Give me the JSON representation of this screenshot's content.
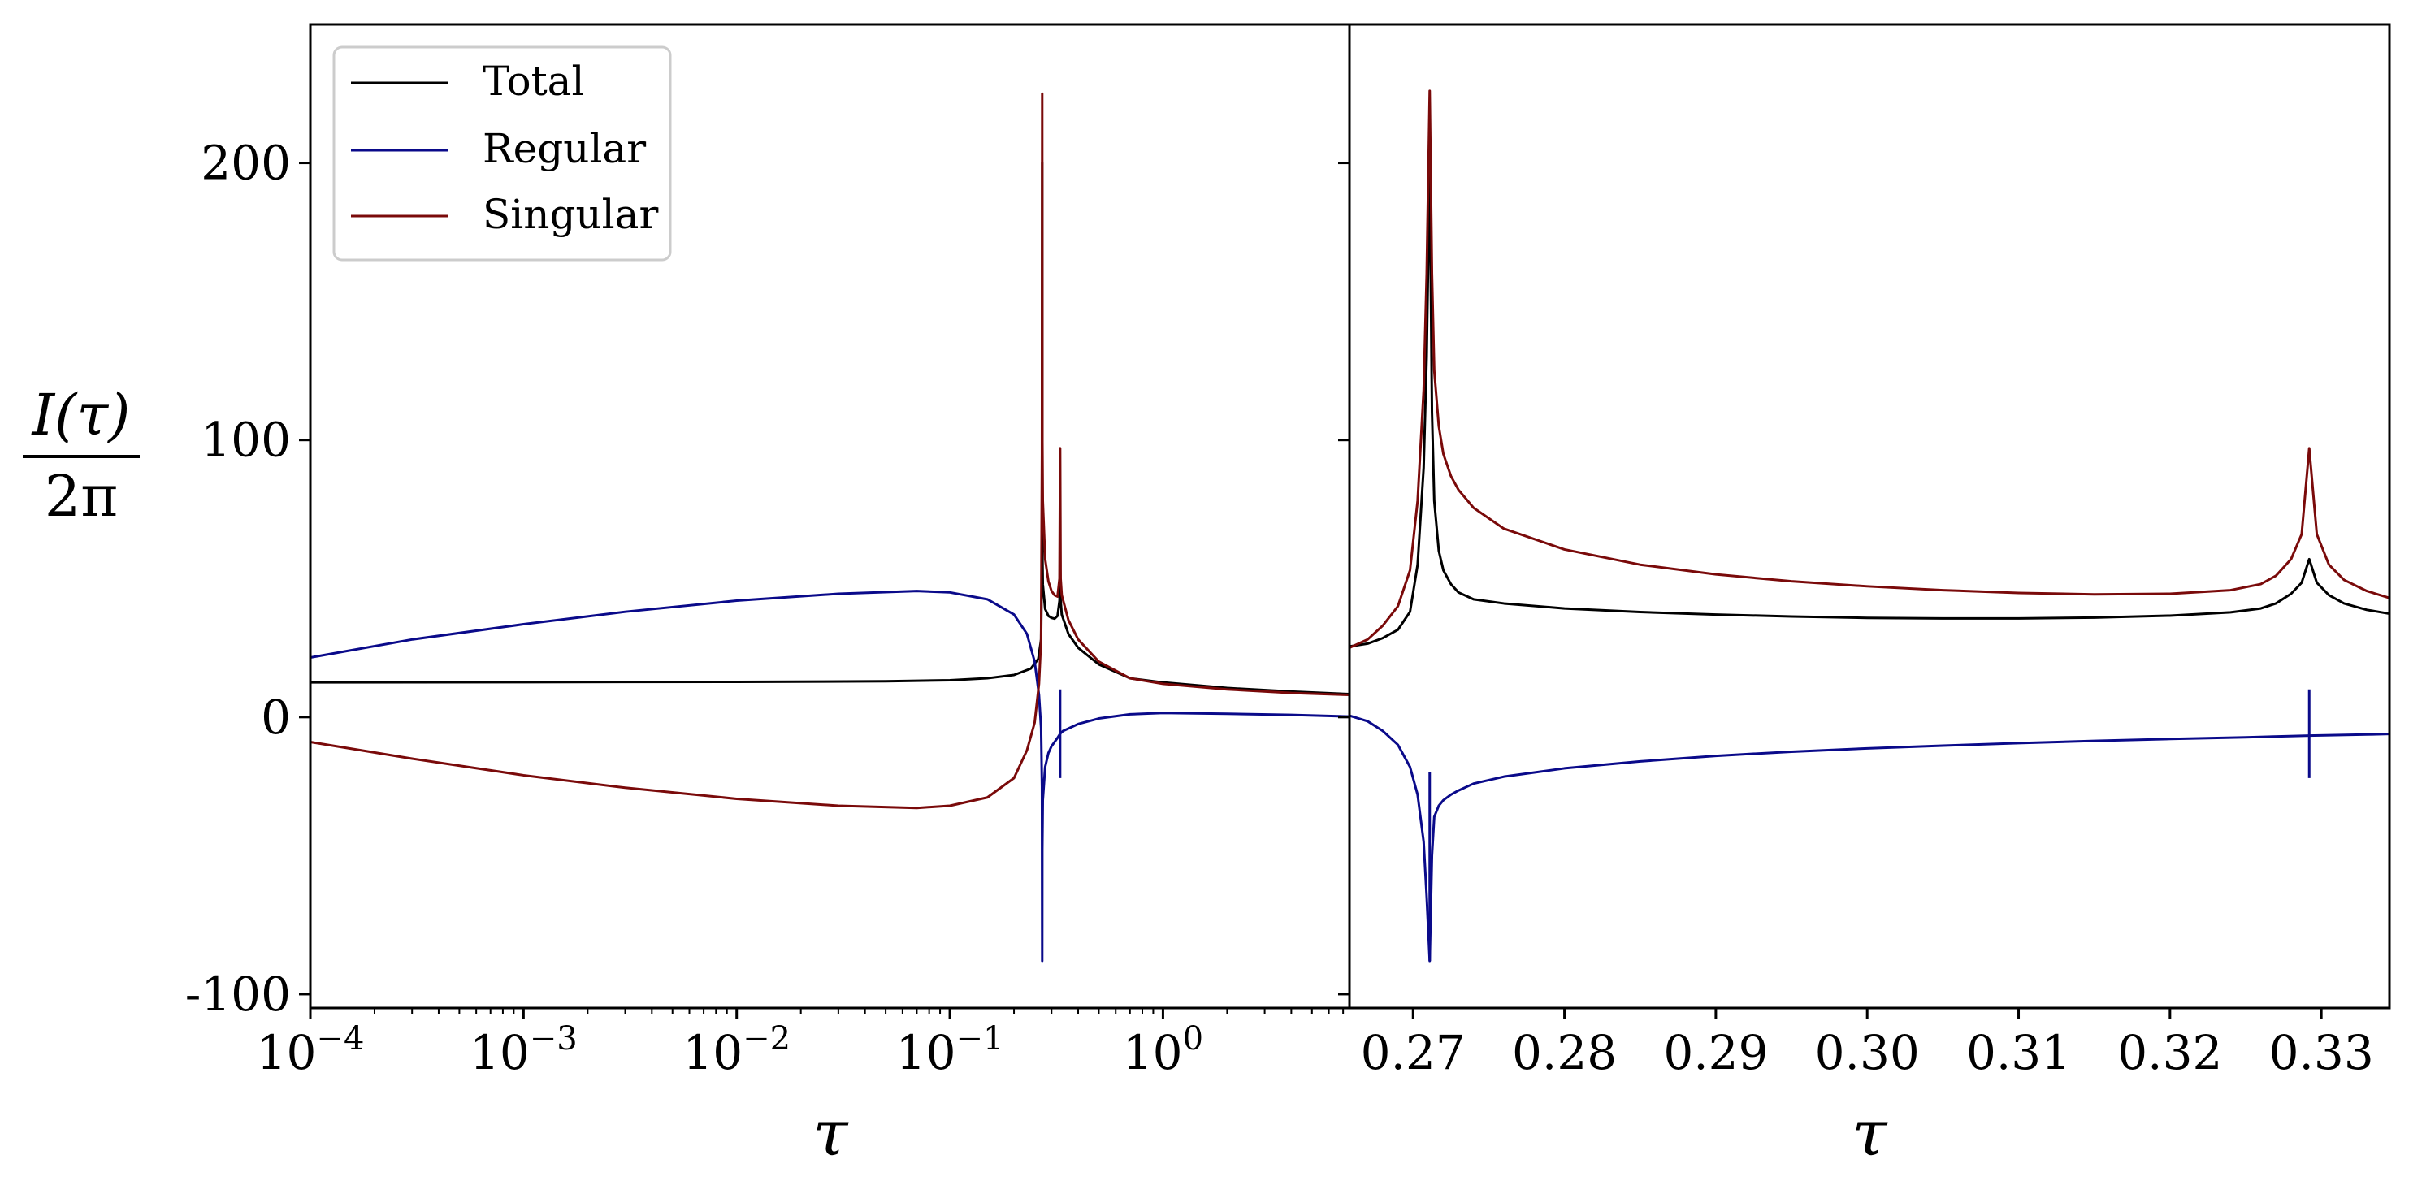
{
  "chart_data": [
    {
      "type": "line",
      "panel": "left",
      "x_scale": "log",
      "xlabel": "τ",
      "ylabel": "I(τ) / 2π",
      "ylabel_numerator": "I(τ)",
      "ylabel_denominator": "2π",
      "xlim": [
        0.0001,
        7.5
      ],
      "ylim": [
        -105,
        250
      ],
      "x_tick_labels": [
        {
          "value": 0.0001,
          "base": "10",
          "exp": "−4"
        },
        {
          "value": 0.001,
          "base": "10",
          "exp": "−3"
        },
        {
          "value": 0.01,
          "base": "10",
          "exp": "−2"
        },
        {
          "value": 0.1,
          "base": "10",
          "exp": "−1"
        },
        {
          "value": 1,
          "base": "10",
          "exp": "0"
        }
      ],
      "y_tick_labels": [
        {
          "value": 200,
          "label": "200"
        },
        {
          "value": 100,
          "label": "100"
        },
        {
          "value": 0,
          "label": "0"
        },
        {
          "value": -100,
          "label": "-100"
        }
      ],
      "legend": {
        "placement": "top-left",
        "entries": [
          "Total",
          "Regular",
          "Singular"
        ]
      },
      "grid": false,
      "series": [
        {
          "name": "Total",
          "color": "#000000",
          "points": [
            [
              0.0001,
              12.5
            ],
            [
              0.001,
              12.6
            ],
            [
              0.01,
              12.7
            ],
            [
              0.05,
              12.9
            ],
            [
              0.1,
              13.3
            ],
            [
              0.15,
              14.0
            ],
            [
              0.2,
              15.2
            ],
            [
              0.24,
              17.5
            ],
            [
              0.26,
              21
            ],
            [
              0.268,
              28
            ],
            [
              0.2705,
              60
            ],
            [
              0.2713,
              200
            ],
            [
              0.2718,
              60
            ],
            [
              0.273,
              48
            ],
            [
              0.28,
              39
            ],
            [
              0.29,
              36.5
            ],
            [
              0.3,
              35.8
            ],
            [
              0.31,
              35.5
            ],
            [
              0.32,
              36.5
            ],
            [
              0.327,
              42
            ],
            [
              0.3292,
              58
            ],
            [
              0.331,
              42
            ],
            [
              0.335,
              37
            ],
            [
              0.36,
              30
            ],
            [
              0.4,
              25
            ],
            [
              0.5,
              19
            ],
            [
              0.7,
              14
            ],
            [
              1,
              12.5
            ],
            [
              2,
              10.5
            ],
            [
              4,
              9.2
            ],
            [
              7.5,
              8.3
            ]
          ]
        },
        {
          "name": "Regular",
          "color": "#0a0a8a",
          "points": [
            [
              0.0001,
              21.5
            ],
            [
              0.0003,
              28
            ],
            [
              0.001,
              33.5
            ],
            [
              0.003,
              38
            ],
            [
              0.01,
              42
            ],
            [
              0.03,
              44.5
            ],
            [
              0.07,
              45.5
            ],
            [
              0.1,
              45
            ],
            [
              0.15,
              42.5
            ],
            [
              0.2,
              37
            ],
            [
              0.23,
              30
            ],
            [
              0.25,
              20
            ],
            [
              0.262,
              8
            ],
            [
              0.268,
              -4
            ],
            [
              0.2705,
              -25
            ],
            [
              0.2713,
              -88
            ],
            [
              0.2716,
              -48
            ],
            [
              0.273,
              -30
            ],
            [
              0.28,
              -18
            ],
            [
              0.29,
              -13
            ],
            [
              0.3,
              -10.5
            ],
            [
              0.31,
              -9
            ],
            [
              0.32,
              -7.5
            ],
            [
              0.3292,
              -6
            ],
            [
              0.34,
              -5
            ],
            [
              0.4,
              -2.5
            ],
            [
              0.5,
              -0.5
            ],
            [
              0.7,
              1
            ],
            [
              1,
              1.5
            ],
            [
              2,
              1.2
            ],
            [
              4,
              0.8
            ],
            [
              7.5,
              0.2
            ]
          ]
        },
        {
          "name": "Singular",
          "color": "#7a0a0a",
          "points": [
            [
              0.0001,
              -9
            ],
            [
              0.0003,
              -15
            ],
            [
              0.001,
              -21
            ],
            [
              0.003,
              -25.5
            ],
            [
              0.01,
              -29.5
            ],
            [
              0.03,
              -32
            ],
            [
              0.07,
              -32.8
            ],
            [
              0.1,
              -32
            ],
            [
              0.15,
              -29
            ],
            [
              0.2,
              -22
            ],
            [
              0.23,
              -12
            ],
            [
              0.25,
              -2
            ],
            [
              0.262,
              12
            ],
            [
              0.268,
              28
            ],
            [
              0.2705,
              95
            ],
            [
              0.2713,
              225
            ],
            [
              0.2718,
              100
            ],
            [
              0.273,
              78
            ],
            [
              0.28,
              57
            ],
            [
              0.29,
              49
            ],
            [
              0.3,
              45.5
            ],
            [
              0.31,
              44
            ],
            [
              0.32,
              43.5
            ],
            [
              0.327,
              50
            ],
            [
              0.3292,
              97
            ],
            [
              0.331,
              50
            ],
            [
              0.335,
              44
            ],
            [
              0.36,
              35
            ],
            [
              0.4,
              28
            ],
            [
              0.5,
              20
            ],
            [
              0.7,
              14
            ],
            [
              1,
              12
            ],
            [
              2,
              10
            ],
            [
              4,
              8.7
            ],
            [
              7.5,
              8
            ]
          ]
        }
      ],
      "spikes": [
        {
          "series": "Regular",
          "x": 0.3292,
          "y_low": -22,
          "y_high": 10
        }
      ]
    },
    {
      "type": "line",
      "panel": "right",
      "x_scale": "linear",
      "xlabel": "τ",
      "xlim": [
        0.2658,
        0.3345
      ],
      "ylim": [
        -105,
        250
      ],
      "x_tick_labels": [
        {
          "value": 0.27,
          "label": "0.27"
        },
        {
          "value": 0.28,
          "label": "0.28"
        },
        {
          "value": 0.29,
          "label": "0.29"
        },
        {
          "value": 0.3,
          "label": "0.30"
        },
        {
          "value": 0.31,
          "label": "0.31"
        },
        {
          "value": 0.32,
          "label": "0.32"
        },
        {
          "value": 0.33,
          "label": "0.33"
        }
      ],
      "y_ticks": [
        200,
        100,
        0,
        -100
      ],
      "grid": false,
      "series": [
        {
          "name": "Total",
          "color": "#000000",
          "points": [
            [
              0.2658,
              25.5
            ],
            [
              0.267,
              26.5
            ],
            [
              0.268,
              28.5
            ],
            [
              0.269,
              31.5
            ],
            [
              0.2698,
              38
            ],
            [
              0.2703,
              55
            ],
            [
              0.2707,
              90
            ],
            [
              0.2709,
              130
            ],
            [
              0.2711,
              200
            ],
            [
              0.27125,
              110
            ],
            [
              0.2714,
              78
            ],
            [
              0.2717,
              60
            ],
            [
              0.272,
              53
            ],
            [
              0.2725,
              48
            ],
            [
              0.273,
              45
            ],
            [
              0.274,
              42.5
            ],
            [
              0.276,
              41
            ],
            [
              0.28,
              39.2
            ],
            [
              0.285,
              37.9
            ],
            [
              0.29,
              37
            ],
            [
              0.295,
              36.3
            ],
            [
              0.3,
              35.8
            ],
            [
              0.305,
              35.6
            ],
            [
              0.31,
              35.6
            ],
            [
              0.315,
              35.9
            ],
            [
              0.32,
              36.6
            ],
            [
              0.324,
              37.8
            ],
            [
              0.326,
              39.2
            ],
            [
              0.327,
              41
            ],
            [
              0.328,
              44.5
            ],
            [
              0.3287,
              48.5
            ],
            [
              0.3292,
              57
            ],
            [
              0.3297,
              48.5
            ],
            [
              0.3305,
              44
            ],
            [
              0.3315,
              41
            ],
            [
              0.333,
              38.7
            ],
            [
              0.3345,
              37.3
            ]
          ]
        },
        {
          "name": "Regular",
          "color": "#0a0a8a",
          "points": [
            [
              0.2658,
              0.5
            ],
            [
              0.267,
              -1.5
            ],
            [
              0.268,
              -5
            ],
            [
              0.269,
              -10
            ],
            [
              0.2698,
              -18
            ],
            [
              0.2703,
              -28
            ],
            [
              0.2707,
              -45
            ],
            [
              0.2709,
              -65
            ],
            [
              0.2711,
              -88
            ],
            [
              0.27125,
              -50
            ],
            [
              0.2714,
              -36
            ],
            [
              0.2717,
              -32
            ],
            [
              0.272,
              -30
            ],
            [
              0.2725,
              -28
            ],
            [
              0.273,
              -26.5
            ],
            [
              0.274,
              -24
            ],
            [
              0.276,
              -21.5
            ],
            [
              0.28,
              -18.5
            ],
            [
              0.285,
              -16
            ],
            [
              0.29,
              -14
            ],
            [
              0.295,
              -12.5
            ],
            [
              0.3,
              -11.3
            ],
            [
              0.305,
              -10.3
            ],
            [
              0.31,
              -9.4
            ],
            [
              0.315,
              -8.6
            ],
            [
              0.32,
              -7.9
            ],
            [
              0.325,
              -7.3
            ],
            [
              0.3292,
              -6.7
            ],
            [
              0.333,
              -6.3
            ],
            [
              0.3345,
              -6.1
            ]
          ]
        },
        {
          "name": "Singular",
          "color": "#7a0a0a",
          "points": [
            [
              0.2658,
              25
            ],
            [
              0.267,
              28
            ],
            [
              0.268,
              33
            ],
            [
              0.269,
              40
            ],
            [
              0.2698,
              53
            ],
            [
              0.2703,
              78
            ],
            [
              0.2707,
              118
            ],
            [
              0.2709,
              160
            ],
            [
              0.2711,
              226
            ],
            [
              0.27125,
              160
            ],
            [
              0.2714,
              125
            ],
            [
              0.2717,
              105
            ],
            [
              0.272,
              95
            ],
            [
              0.2725,
              87
            ],
            [
              0.273,
              82
            ],
            [
              0.274,
              75.5
            ],
            [
              0.276,
              68
            ],
            [
              0.28,
              60.5
            ],
            [
              0.285,
              55
            ],
            [
              0.29,
              51.5
            ],
            [
              0.295,
              49
            ],
            [
              0.3,
              47.2
            ],
            [
              0.305,
              45.8
            ],
            [
              0.31,
              44.8
            ],
            [
              0.315,
              44.3
            ],
            [
              0.32,
              44.5
            ],
            [
              0.324,
              45.8
            ],
            [
              0.326,
              48
            ],
            [
              0.327,
              51
            ],
            [
              0.328,
              57
            ],
            [
              0.3287,
              66
            ],
            [
              0.3292,
              97
            ],
            [
              0.3297,
              66
            ],
            [
              0.3305,
              55
            ],
            [
              0.3315,
              49.5
            ],
            [
              0.333,
              45.5
            ],
            [
              0.3345,
              43
            ]
          ]
        }
      ],
      "spikes": [
        {
          "series": "Regular",
          "x": 0.2711,
          "y_low": -88,
          "y_high": -20
        },
        {
          "series": "Regular",
          "x": 0.3292,
          "y_low": -22,
          "y_high": 10
        }
      ]
    }
  ]
}
